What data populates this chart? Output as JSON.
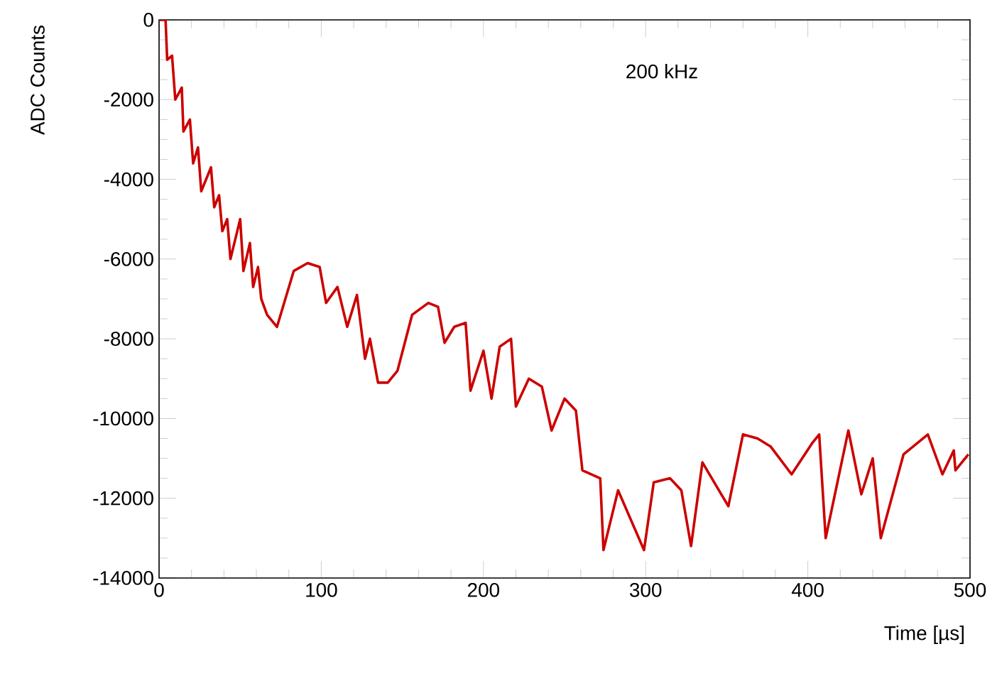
{
  "chart_data": {
    "type": "line",
    "xlabel": "Time [µs]",
    "ylabel": "ADC Counts",
    "annotations": [
      "200 kHz"
    ],
    "x": [
      0,
      4,
      5,
      8,
      10,
      14,
      15,
      19,
      21,
      24,
      26,
      32,
      34,
      37,
      39,
      42,
      44,
      50,
      52,
      56,
      58,
      61,
      63,
      66.6,
      72.7,
      83,
      91.6,
      99,
      103,
      110,
      116,
      122,
      127,
      130,
      135,
      141,
      147,
      156,
      166,
      172,
      176,
      182,
      189,
      192,
      200,
      205,
      210,
      217,
      220,
      228,
      236,
      242,
      250,
      257,
      261,
      272,
      274,
      283,
      299,
      305,
      315,
      322,
      328,
      335,
      351,
      360,
      369,
      377,
      390,
      403,
      407,
      411,
      425,
      433,
      440,
      445,
      459,
      474,
      483,
      490,
      491,
      499
    ],
    "series": [
      {
        "color": "#cc0000",
        "values": [
          0,
          0,
          -1000,
          -900,
          -2000,
          -1700,
          -2800,
          -2500,
          -3600,
          -3200,
          -4300,
          -3700,
          -4700,
          -4400,
          -5300,
          -5000,
          -6000,
          -5000,
          -6300,
          -5600,
          -6700,
          -6200,
          -7000,
          -7400,
          -7700,
          -6300,
          -6100,
          -6200,
          -7100,
          -6700,
          -7700,
          -6900,
          -8500,
          -8000,
          -9100,
          -9100,
          -8800,
          -7400,
          -7100,
          -7200,
          -8100,
          -7700,
          -7600,
          -9300,
          -8300,
          -9500,
          -8200,
          -8000,
          -9700,
          -9000,
          -9200,
          -10300,
          -9500,
          -9800,
          -11300,
          -11500,
          -13300,
          -11800,
          -13300,
          -11600,
          -11500,
          -11800,
          -13200,
          -11100,
          -12200,
          -10400,
          -10500,
          -10700,
          -11400,
          -10600,
          -10400,
          -13000,
          -10300,
          -11900,
          -11000,
          -13000,
          -10900,
          -10400,
          -11400,
          -10800,
          -11300,
          -10900
        ]
      }
    ],
    "xlim": [
      0,
      500
    ],
    "ylim": [
      -14000,
      0
    ],
    "xticks": [
      0,
      100,
      200,
      300,
      400,
      500
    ],
    "yticks": [
      -14000,
      -12000,
      -10000,
      -8000,
      -6000,
      -4000,
      -2000,
      0
    ],
    "grid": false,
    "marker": "none",
    "line_style": "solid"
  }
}
